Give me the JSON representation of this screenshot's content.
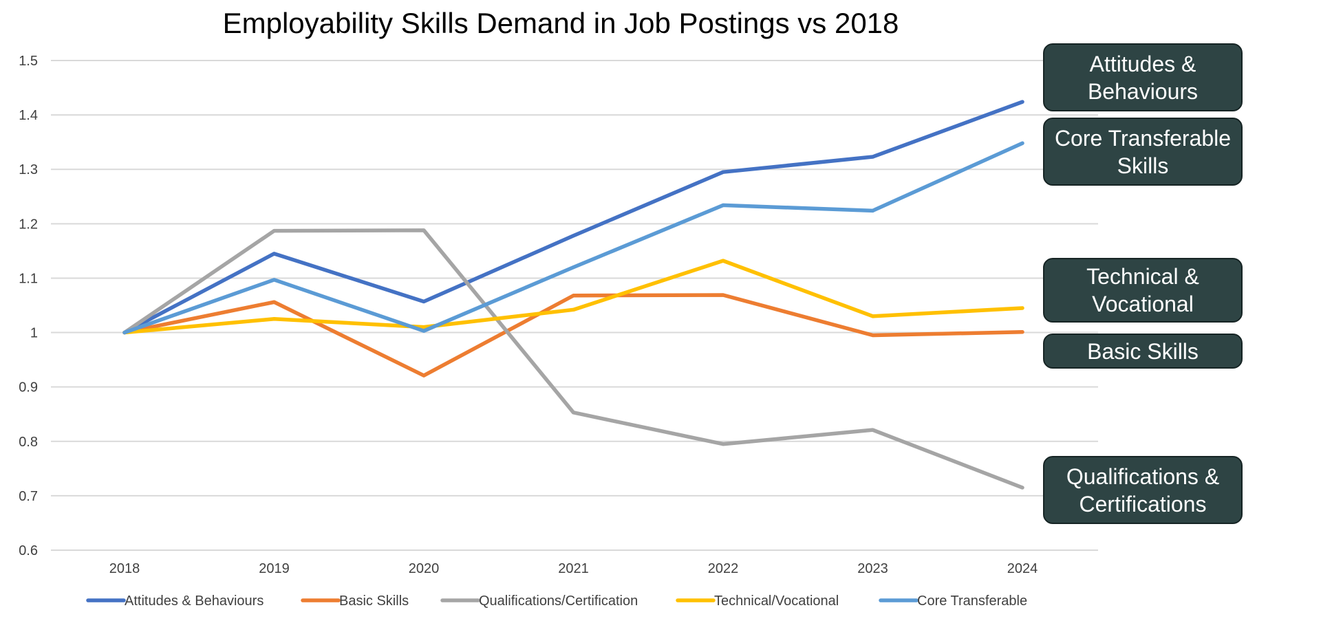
{
  "chart_data": {
    "type": "line",
    "title": "Employability Skills Demand in Job Postings vs 2018",
    "xlabel": "",
    "ylabel": "",
    "categories": [
      "2018",
      "2019",
      "2020",
      "2021",
      "2022",
      "2023",
      "2024"
    ],
    "ylim": [
      0.6,
      1.5
    ],
    "yticks": [
      "1.5",
      "1.4",
      "1.3",
      "1.2",
      "1.1",
      "1",
      "0.9",
      "0.8",
      "0.7",
      "0.6"
    ],
    "grid": true,
    "legend_position": "bottom",
    "series": [
      {
        "name": "Attitudes & Behaviours",
        "color": "#4472c4",
        "values": [
          1.0,
          1.145,
          1.057,
          1.178,
          1.295,
          1.323,
          1.424
        ]
      },
      {
        "name": "Basic Skills",
        "color": "#ed7d31",
        "values": [
          1.0,
          1.056,
          0.921,
          1.068,
          1.069,
          0.995,
          1.001
        ]
      },
      {
        "name": "Qualifications/Certification",
        "color": "#a5a5a5",
        "values": [
          1.0,
          1.187,
          1.188,
          0.853,
          0.795,
          0.821,
          0.715
        ]
      },
      {
        "name": "Technical/Vocational",
        "color": "#ffc000",
        "values": [
          1.0,
          1.025,
          1.01,
          1.042,
          1.132,
          1.03,
          1.045
        ]
      },
      {
        "name": "Core Transferable",
        "color": "#5b9bd5",
        "values": [
          1.0,
          1.097,
          1.003,
          1.12,
          1.234,
          1.224,
          1.348
        ]
      }
    ],
    "annotations": [
      {
        "lines": [
          "Attitudes & Behaviours"
        ]
      },
      {
        "lines": [
          "Core Transferable",
          "Skills"
        ]
      },
      {
        "lines": [
          "Technical & Vocational"
        ]
      },
      {
        "lines": [
          "Basic Skills"
        ]
      },
      {
        "lines": [
          "Qualifications &",
          "Certifications"
        ]
      }
    ]
  }
}
